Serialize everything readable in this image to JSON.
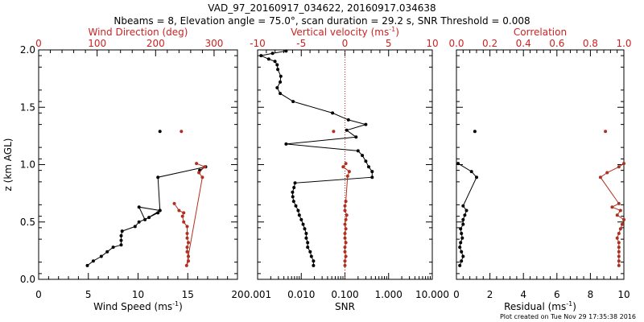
{
  "title_line1": "VAD_97_20160917_034622, 20160917.034638",
  "title_line2": "Nbeams = 8, Elevation angle = 75.0°, scan duration = 29.2 s, SNR Threshold = 0.008",
  "footer": "Plot created on Tue Nov 29 17:35:38 2016",
  "colors": {
    "black_series": "#000000",
    "red_series": "#b03020",
    "red_axis": "#cc2222"
  },
  "chart_data": [
    {
      "type": "line",
      "y_label": "z (km AGL)",
      "ylim": [
        0.0,
        2.0
      ],
      "y_ticks": [
        "0.0",
        "0.5",
        "1.0",
        "1.5",
        "2.0"
      ],
      "bottom_axis": {
        "label": "Wind Speed (ms",
        "label_sup": "-1",
        "label_end": ")",
        "lim": [
          0,
          20
        ],
        "ticks": [
          "0",
          "5",
          "10",
          "15",
          "20"
        ]
      },
      "top_axis": {
        "label": "Wind Direction (deg)",
        "lim": [
          0,
          340
        ],
        "ticks": [
          "0",
          "100",
          "200",
          "300"
        ]
      },
      "series": [
        {
          "axis": "bottom",
          "color": "black",
          "points": [
            [
              4.9,
              0.12
            ],
            [
              5.5,
              0.16
            ],
            [
              6.3,
              0.2
            ],
            [
              6.9,
              0.24
            ],
            [
              7.5,
              0.28
            ],
            [
              8.3,
              0.3
            ],
            [
              8.3,
              0.34
            ],
            [
              8.3,
              0.38
            ],
            [
              8.4,
              0.42
            ],
            [
              9.7,
              0.46
            ],
            [
              10.1,
              0.5
            ],
            [
              11.1,
              0.54
            ],
            [
              12.0,
              0.58
            ],
            [
              12.2,
              0.6
            ],
            [
              10.1,
              0.63
            ],
            [
              10.7,
              0.52
            ],
            [
              12.2,
              0.6
            ],
            [
              12.0,
              0.89
            ],
            [
              16.8,
              0.98
            ],
            [
              16.2,
              0.95
            ]
          ]
        },
        {
          "axis": "bottom",
          "color": "black",
          "points": [
            [
              12.2,
              1.29
            ]
          ]
        },
        {
          "axis": "top",
          "color": "red",
          "points": [
            [
              232,
              0.66
            ],
            [
              240,
              0.6
            ],
            [
              248,
              0.58
            ],
            [
              246,
              0.55
            ],
            [
              248,
              0.5
            ],
            [
              254,
              0.46
            ],
            [
              254,
              0.4
            ],
            [
              254,
              0.36
            ],
            [
              256,
              0.32
            ],
            [
              254,
              0.28
            ],
            [
              254,
              0.24
            ],
            [
              256,
              0.2
            ],
            [
              256,
              0.16
            ],
            [
              253,
              0.12
            ],
            [
              280,
              0.89
            ],
            [
              274,
              0.93
            ],
            [
              284,
              0.98
            ],
            [
              270,
              1.01
            ]
          ]
        },
        {
          "axis": "top",
          "color": "red",
          "points": [
            [
              244,
              1.29
            ]
          ]
        }
      ]
    },
    {
      "type": "line",
      "ylim": [
        0.0,
        2.0
      ],
      "bottom_axis": {
        "label": "SNR",
        "scale": "log",
        "lim": [
          0.001,
          10.0
        ],
        "ticks": [
          "0.001",
          "0.010",
          "0.100",
          "1.000",
          "10.000"
        ]
      },
      "top_axis": {
        "label": "Vertical velocity (ms",
        "label_sup": "-1",
        "label_end": ")",
        "lim": [
          -10,
          10
        ],
        "ticks": [
          "-10",
          "-5",
          "0",
          "5",
          "10"
        ]
      },
      "series": [
        {
          "axis": "bottom",
          "color": "black",
          "points": [
            [
              0.019,
              0.12
            ],
            [
              0.019,
              0.16
            ],
            [
              0.017,
              0.2
            ],
            [
              0.016,
              0.24
            ],
            [
              0.014,
              0.28
            ],
            [
              0.014,
              0.32
            ],
            [
              0.013,
              0.36
            ],
            [
              0.013,
              0.4
            ],
            [
              0.012,
              0.44
            ],
            [
              0.011,
              0.48
            ],
            [
              0.01,
              0.52
            ],
            [
              0.009,
              0.56
            ],
            [
              0.0085,
              0.6
            ],
            [
              0.0075,
              0.64
            ],
            [
              0.0067,
              0.68
            ],
            [
              0.0064,
              0.72
            ],
            [
              0.0063,
              0.76
            ],
            [
              0.0068,
              0.8
            ],
            [
              0.0072,
              0.84
            ],
            [
              0.42,
              0.89
            ],
            [
              0.42,
              0.94
            ],
            [
              0.35,
              0.98
            ],
            [
              0.3,
              1.03
            ],
            [
              0.25,
              1.08
            ],
            [
              0.2,
              1.12
            ],
            [
              0.0045,
              1.18
            ],
            [
              0.18,
              1.24
            ],
            [
              0.11,
              1.3
            ],
            [
              0.3,
              1.35
            ],
            [
              0.12,
              1.39
            ],
            [
              0.052,
              1.45
            ],
            [
              0.0065,
              1.55
            ],
            [
              0.0033,
              1.62
            ],
            [
              0.0028,
              1.67
            ],
            [
              0.0033,
              1.72
            ],
            [
              0.0034,
              1.77
            ],
            [
              0.0029,
              1.83
            ],
            [
              0.0028,
              1.87
            ],
            [
              0.0025,
              1.9
            ],
            [
              0.0018,
              1.92
            ],
            [
              0.0012,
              1.95
            ],
            [
              0.0022,
              1.97
            ],
            [
              0.0045,
              1.99
            ]
          ]
        },
        {
          "axis": "top",
          "color": "red",
          "points": [
            [
              0,
              0.12
            ],
            [
              0,
              0.16
            ],
            [
              0.1,
              0.2
            ],
            [
              0,
              0.24
            ],
            [
              0,
              0.28
            ],
            [
              0.1,
              0.32
            ],
            [
              0,
              0.36
            ],
            [
              0,
              0.4
            ],
            [
              0.1,
              0.44
            ],
            [
              0,
              0.48
            ],
            [
              0.1,
              0.52
            ],
            [
              0.2,
              0.56
            ],
            [
              0,
              0.6
            ],
            [
              0,
              0.64
            ],
            [
              0.1,
              0.68
            ],
            [
              0.3,
              0.9
            ],
            [
              0.5,
              0.94
            ],
            [
              -0.2,
              0.98
            ],
            [
              0.1,
              1.01
            ]
          ]
        },
        {
          "axis": "top",
          "color": "red",
          "points": [
            [
              -1.3,
              1.29
            ]
          ]
        }
      ],
      "reference_line": {
        "axis": "top",
        "value": 0,
        "style": "dotted",
        "color": "red"
      }
    },
    {
      "type": "line",
      "ylim": [
        0.0,
        2.0
      ],
      "bottom_axis": {
        "label": "Residual (ms",
        "label_sup": "-1",
        "label_end": ")",
        "lim": [
          0,
          10
        ],
        "ticks": [
          "0",
          "2",
          "4",
          "6",
          "8",
          "10"
        ]
      },
      "top_axis": {
        "label": "Correlation",
        "lim": [
          0.0,
          1.0
        ],
        "ticks": [
          "0.0",
          "0.2",
          "0.4",
          "0.6",
          "0.8",
          "1.0"
        ]
      },
      "series": [
        {
          "axis": "bottom",
          "color": "black",
          "points": [
            [
              0.2,
              0.12
            ],
            [
              0.3,
              0.16
            ],
            [
              0.4,
              0.2
            ],
            [
              0.3,
              0.24
            ],
            [
              0.2,
              0.28
            ],
            [
              0.25,
              0.32
            ],
            [
              0.35,
              0.36
            ],
            [
              0.3,
              0.4
            ],
            [
              0.25,
              0.44
            ],
            [
              0.4,
              0.48
            ],
            [
              0.4,
              0.52
            ],
            [
              0.5,
              0.56
            ],
            [
              0.6,
              0.6
            ],
            [
              0.4,
              0.64
            ],
            [
              1.2,
              0.89
            ],
            [
              0.9,
              0.94
            ],
            [
              0.1,
              1.01
            ]
          ]
        },
        {
          "axis": "bottom",
          "color": "black",
          "points": [
            [
              1.1,
              1.29
            ]
          ]
        },
        {
          "axis": "top",
          "color": "red",
          "points": [
            [
              0.97,
              0.12
            ],
            [
              0.97,
              0.16
            ],
            [
              0.97,
              0.2
            ],
            [
              0.97,
              0.24
            ],
            [
              0.97,
              0.28
            ],
            [
              0.97,
              0.32
            ],
            [
              0.96,
              0.36
            ],
            [
              0.97,
              0.4
            ],
            [
              0.98,
              0.44
            ],
            [
              0.99,
              0.48
            ],
            [
              1.0,
              0.52
            ],
            [
              0.96,
              0.56
            ],
            [
              0.98,
              0.6
            ],
            [
              0.93,
              0.63
            ],
            [
              0.97,
              0.66
            ],
            [
              0.86,
              0.89
            ],
            [
              0.9,
              0.93
            ],
            [
              0.97,
              0.98
            ],
            [
              1.0,
              1.01
            ]
          ]
        },
        {
          "axis": "top",
          "color": "red",
          "points": [
            [
              0.89,
              1.29
            ]
          ]
        }
      ]
    }
  ]
}
